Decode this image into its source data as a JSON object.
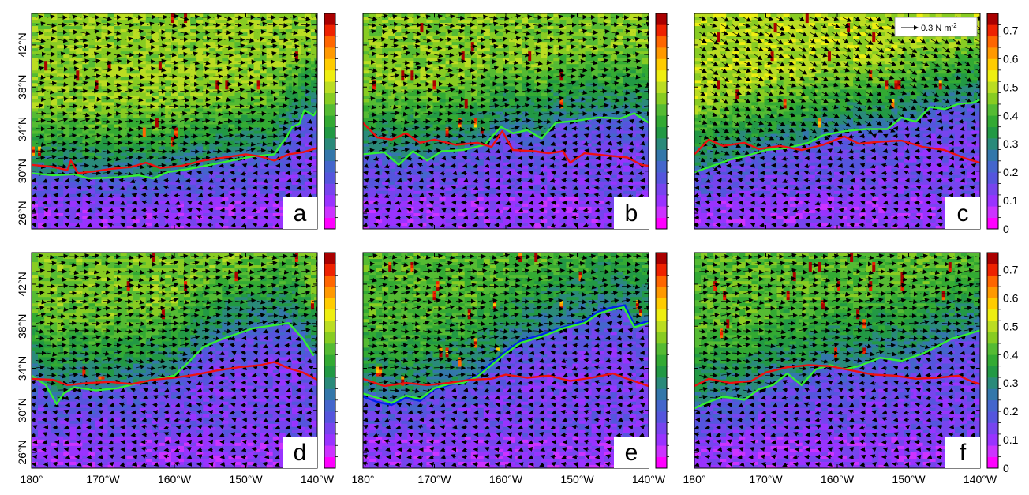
{
  "chart_data": {
    "type": "heatmap",
    "lon_ticks": [
      "180°",
      "170°W",
      "160°W",
      "150°W",
      "140°W"
    ],
    "lon_values": [
      -180,
      -170,
      -160,
      -150,
      -140
    ],
    "lat_ticks": [
      "42°N",
      "38°N",
      "34°N",
      "30°N",
      "26°N"
    ],
    "lat_values": [
      42,
      38,
      34,
      30,
      26
    ],
    "xlim": [
      -180,
      -140
    ],
    "ylim": [
      24.5,
      45
    ],
    "colorbar": {
      "range": [
        0,
        0.76
      ],
      "levels": 19,
      "tick_labels": [
        "0",
        "0.1",
        "0.2",
        "0.3",
        "0.4",
        "0.5",
        "0.6",
        "0.7"
      ],
      "tick_values": [
        0,
        0.1,
        0.2,
        0.3,
        0.4,
        0.5,
        0.6,
        0.7
      ],
      "colors": [
        "#ff00ff",
        "#cc33ff",
        "#9933ff",
        "#7744ee",
        "#5555dd",
        "#4466cc",
        "#3377aa",
        "#2a8a7a",
        "#229944",
        "#33aa33",
        "#55bb33",
        "#88cc22",
        "#bbdd22",
        "#eeee11",
        "#ffcc00",
        "#ff9900",
        "#ff6600",
        "#ee2200",
        "#aa0000"
      ]
    },
    "vector_reference": {
      "label": "0.3 N m",
      "superscript": "-2",
      "value": 0.3
    },
    "panels": [
      {
        "letter": "a",
        "red_line": [
          [
            -180,
            30.6
          ],
          [
            -177,
            30.4
          ],
          [
            -175,
            30.1
          ],
          [
            -174.5,
            31.0
          ],
          [
            -173.5,
            29.8
          ],
          [
            -171,
            30.0
          ],
          [
            -169,
            30.2
          ],
          [
            -166,
            30.4
          ],
          [
            -164,
            30.8
          ],
          [
            -162,
            30.3
          ],
          [
            -159,
            30.5
          ],
          [
            -156,
            31.0
          ],
          [
            -153,
            31.3
          ],
          [
            -150,
            31.6
          ],
          [
            -148,
            31.4
          ],
          [
            -146,
            31.0
          ],
          [
            -144,
            31.6
          ],
          [
            -142,
            31.8
          ],
          [
            -140,
            32.2
          ]
        ],
        "green_line": [
          [
            -180,
            29.8
          ],
          [
            -177,
            29.6
          ],
          [
            -174,
            29.7
          ],
          [
            -172,
            29.3
          ],
          [
            -168,
            29.4
          ],
          [
            -165,
            29.6
          ],
          [
            -163,
            29.3
          ],
          [
            -161,
            29.9
          ],
          [
            -158,
            30.2
          ],
          [
            -155,
            30.6
          ],
          [
            -152,
            31.0
          ],
          [
            -149,
            31.4
          ],
          [
            -146,
            31.6
          ],
          [
            -145,
            32.6
          ],
          [
            -144.5,
            33.0
          ],
          [
            -143.5,
            34.2
          ],
          [
            -142.5,
            34.5
          ],
          [
            -141.8,
            35.8
          ],
          [
            -140.5,
            35.3
          ],
          [
            -140,
            35.8
          ]
        ]
      },
      {
        "letter": "b",
        "red_line": [
          [
            -180,
            34.6
          ],
          [
            -178,
            33.2
          ],
          [
            -176,
            33.0
          ],
          [
            -174,
            33.6
          ],
          [
            -172,
            32.7
          ],
          [
            -170,
            33.0
          ],
          [
            -167,
            32.5
          ],
          [
            -164,
            32.7
          ],
          [
            -162,
            32.3
          ],
          [
            -160.5,
            33.8
          ],
          [
            -159,
            32.0
          ],
          [
            -156,
            31.9
          ],
          [
            -154,
            31.7
          ],
          [
            -152,
            31.9
          ],
          [
            -151,
            30.8
          ],
          [
            -149,
            31.7
          ],
          [
            -146,
            31.5
          ],
          [
            -143,
            31.3
          ],
          [
            -141,
            30.6
          ],
          [
            -140,
            30.5
          ]
        ],
        "green_line": [
          [
            -180,
            31.6
          ],
          [
            -177,
            31.8
          ],
          [
            -175,
            30.6
          ],
          [
            -173,
            31.9
          ],
          [
            -171,
            31.0
          ],
          [
            -169,
            31.9
          ],
          [
            -166,
            32.0
          ],
          [
            -163,
            32.5
          ],
          [
            -160.7,
            34.2
          ],
          [
            -159,
            33.6
          ],
          [
            -157,
            33.9
          ],
          [
            -155,
            33.1
          ],
          [
            -153,
            34.6
          ],
          [
            -150,
            34.8
          ],
          [
            -147,
            35.1
          ],
          [
            -144,
            35.0
          ],
          [
            -142,
            35.5
          ],
          [
            -140,
            34.6
          ]
        ]
      },
      {
        "letter": "c",
        "red_line": [
          [
            -180,
            31.6
          ],
          [
            -178,
            33.0
          ],
          [
            -176,
            32.4
          ],
          [
            -173,
            32.7
          ],
          [
            -171,
            32.1
          ],
          [
            -168,
            32.4
          ],
          [
            -165,
            32.0
          ],
          [
            -162,
            32.5
          ],
          [
            -159,
            33.3
          ],
          [
            -157,
            32.6
          ],
          [
            -154,
            32.8
          ],
          [
            -151,
            32.9
          ],
          [
            -148,
            32.3
          ],
          [
            -145,
            32.0
          ],
          [
            -142,
            31.2
          ],
          [
            -140,
            30.8
          ]
        ],
        "green_line": [
          [
            -180,
            29.9
          ],
          [
            -177,
            30.6
          ],
          [
            -175,
            31.1
          ],
          [
            -173,
            31.4
          ],
          [
            -170,
            32.0
          ],
          [
            -167,
            32.2
          ],
          [
            -164,
            32.7
          ],
          [
            -162,
            33.4
          ],
          [
            -159,
            33.8
          ],
          [
            -156,
            34.0
          ],
          [
            -153,
            34.0
          ],
          [
            -151,
            35.1
          ],
          [
            -149,
            34.7
          ],
          [
            -147,
            36.1
          ],
          [
            -145,
            35.9
          ],
          [
            -143,
            36.4
          ],
          [
            -141,
            36.5
          ],
          [
            -140,
            36.8
          ]
        ]
      },
      {
        "letter": "d",
        "red_line": [
          [
            -180,
            33.0
          ],
          [
            -177,
            32.9
          ],
          [
            -175,
            32.4
          ],
          [
            -172,
            32.6
          ],
          [
            -169,
            32.7
          ],
          [
            -166,
            32.5
          ],
          [
            -163,
            32.9
          ],
          [
            -160,
            33.1
          ],
          [
            -157,
            33.4
          ],
          [
            -154,
            33.8
          ],
          [
            -151,
            34.1
          ],
          [
            -148,
            34.3
          ],
          [
            -146,
            34.6
          ],
          [
            -144,
            34.0
          ],
          [
            -142,
            33.6
          ],
          [
            -140,
            32.9
          ]
        ],
        "green_line": [
          [
            -180,
            33.3
          ],
          [
            -178,
            32.4
          ],
          [
            -176.5,
            30.6
          ],
          [
            -175.5,
            31.6
          ],
          [
            -174,
            32.2
          ],
          [
            -171,
            31.9
          ],
          [
            -168,
            32.1
          ],
          [
            -165,
            32.6
          ],
          [
            -163,
            32.9
          ],
          [
            -160,
            33.3
          ],
          [
            -158,
            34.6
          ],
          [
            -156,
            36.0
          ],
          [
            -154,
            36.6
          ],
          [
            -152,
            37.1
          ],
          [
            -149,
            37.8
          ],
          [
            -146,
            38.1
          ],
          [
            -144,
            38.3
          ],
          [
            -142,
            36.8
          ],
          [
            -140.5,
            35.2
          ]
        ]
      },
      {
        "letter": "e",
        "red_line": [
          [
            -180,
            33.0
          ],
          [
            -177,
            32.3
          ],
          [
            -174,
            32.6
          ],
          [
            -171,
            32.4
          ],
          [
            -168,
            32.6
          ],
          [
            -165,
            32.9
          ],
          [
            -162,
            33.0
          ],
          [
            -160,
            33.4
          ],
          [
            -157,
            33.1
          ],
          [
            -154,
            33.3
          ],
          [
            -151,
            32.8
          ],
          [
            -148,
            33.1
          ],
          [
            -145,
            33.5
          ],
          [
            -143,
            33.0
          ],
          [
            -140,
            32.3
          ]
        ],
        "green_line": [
          [
            -180,
            31.6
          ],
          [
            -178,
            31.2
          ],
          [
            -176,
            30.7
          ],
          [
            -174,
            31.4
          ],
          [
            -172,
            31.1
          ],
          [
            -170,
            32.1
          ],
          [
            -168,
            32.5
          ],
          [
            -166,
            32.6
          ],
          [
            -164,
            33.2
          ],
          [
            -162,
            34.3
          ],
          [
            -160,
            35.4
          ],
          [
            -158,
            36.4
          ],
          [
            -155,
            37.0
          ],
          [
            -152,
            37.8
          ],
          [
            -149,
            38.3
          ],
          [
            -147,
            39.2
          ],
          [
            -145,
            39.6
          ],
          [
            -143.5,
            39.8
          ],
          [
            -142,
            37.9
          ],
          [
            -140,
            38.3
          ]
        ],
        "blue_line": [
          [
            -180,
            31.3
          ],
          [
            -178,
            30.8
          ],
          [
            -176,
            30.5
          ],
          [
            -174,
            31.2
          ],
          [
            -172,
            30.9
          ],
          [
            -170,
            32.0
          ],
          [
            -168,
            32.4
          ],
          [
            -166,
            32.7
          ],
          [
            -164,
            33.3
          ],
          [
            -162,
            34.5
          ],
          [
            -160,
            35.6
          ],
          [
            -158,
            36.6
          ],
          [
            -155,
            37.2
          ],
          [
            -152,
            37.9
          ],
          [
            -149,
            38.5
          ],
          [
            -147,
            39.4
          ],
          [
            -145,
            39.8
          ],
          [
            -143.3,
            40.0
          ],
          [
            -142,
            38.1
          ],
          [
            -140,
            38.5
          ]
        ]
      },
      {
        "letter": "f",
        "red_line": [
          [
            -180,
            32.3
          ],
          [
            -178,
            33.0
          ],
          [
            -175,
            32.6
          ],
          [
            -172,
            32.8
          ],
          [
            -170,
            33.6
          ],
          [
            -167,
            34.1
          ],
          [
            -164,
            34.3
          ],
          [
            -161,
            34.2
          ],
          [
            -158,
            33.8
          ],
          [
            -155,
            33.4
          ],
          [
            -152,
            33.3
          ],
          [
            -149,
            33.0
          ],
          [
            -146,
            33.1
          ],
          [
            -143,
            33.3
          ],
          [
            -141,
            32.7
          ],
          [
            -140,
            32.5
          ]
        ],
        "green_line": [
          [
            -180,
            30.2
          ],
          [
            -178,
            30.8
          ],
          [
            -176,
            31.3
          ],
          [
            -173,
            31.0
          ],
          [
            -171,
            32.0
          ],
          [
            -169,
            32.4
          ],
          [
            -167,
            33.5
          ],
          [
            -165,
            32.4
          ],
          [
            -163,
            33.9
          ],
          [
            -161,
            34.3
          ],
          [
            -159,
            33.9
          ],
          [
            -157,
            34.2
          ],
          [
            -154,
            35.0
          ],
          [
            -151,
            34.7
          ],
          [
            -148,
            35.4
          ],
          [
            -146,
            36.1
          ],
          [
            -144,
            36.8
          ],
          [
            -142,
            37.2
          ],
          [
            -140,
            37.6
          ]
        ]
      }
    ]
  }
}
